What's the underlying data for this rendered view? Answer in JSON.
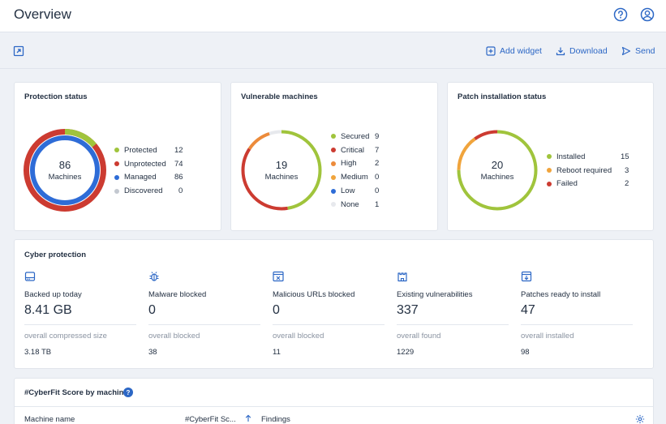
{
  "header": {
    "title": "Overview",
    "help_icon": "help-circle-icon",
    "account_icon": "user-circle-icon"
  },
  "toolbar": {
    "left_icon": "fullscreen-icon",
    "add_widget": "Add widget",
    "download": "Download",
    "send": "Send"
  },
  "colors": {
    "accent": "#2c67c5",
    "green": "#a0c43c",
    "red": "#cc3b31",
    "orange": "#ec8b3b",
    "amber": "#f0a43c",
    "blue": "#2e6cd7",
    "grey": "#c3c8d0",
    "light_grey": "#e7e9ed"
  },
  "protection_status": {
    "title": "Protection status",
    "center_value": "86",
    "center_label": "Machines",
    "legend": [
      {
        "label": "Protected",
        "value": "12",
        "color": "#a0c43c"
      },
      {
        "label": "Unprotected",
        "value": "74",
        "color": "#cc3b31"
      },
      {
        "label": "Managed",
        "value": "86",
        "color": "#2e6cd7"
      },
      {
        "label": "Discovered",
        "value": "0",
        "color": "#c3c8d0"
      }
    ]
  },
  "vulnerable_machines": {
    "title": "Vulnerable machines",
    "center_value": "19",
    "center_label": "Machines",
    "legend": [
      {
        "label": "Secured",
        "value": "9",
        "color": "#a0c43c"
      },
      {
        "label": "Critical",
        "value": "7",
        "color": "#cc3b31"
      },
      {
        "label": "High",
        "value": "2",
        "color": "#ec8b3b"
      },
      {
        "label": "Medium",
        "value": "0",
        "color": "#f0a43c"
      },
      {
        "label": "Low",
        "value": "0",
        "color": "#2e6cd7"
      },
      {
        "label": "None",
        "value": "1",
        "color": "#e7e9ed"
      }
    ]
  },
  "patch_installation": {
    "title": "Patch installation status",
    "center_value": "20",
    "center_label": "Machines",
    "legend": [
      {
        "label": "Installed",
        "value": "15",
        "color": "#a0c43c"
      },
      {
        "label": "Reboot required",
        "value": "3",
        "color": "#f0a43c"
      },
      {
        "label": "Failed",
        "value": "2",
        "color": "#cc3b31"
      }
    ]
  },
  "cyber_protection": {
    "title": "Cyber protection",
    "stats": [
      {
        "icon": "hard-drive-icon",
        "label": "Backed up today",
        "value": "8.41 GB",
        "sub_label": "overall compressed size",
        "sub_value": "3.18 TB"
      },
      {
        "icon": "bug-icon",
        "label": "Malware blocked",
        "value": "0",
        "sub_label": "overall blocked",
        "sub_value": "38"
      },
      {
        "icon": "browser-url-icon",
        "label": "Malicious URLs blocked",
        "value": "0",
        "sub_label": "overall blocked",
        "sub_value": "11"
      },
      {
        "icon": "castle-icon",
        "label": "Existing vulnerabilities",
        "value": "337",
        "sub_label": "overall found",
        "sub_value": "1229"
      },
      {
        "icon": "patch-download-icon",
        "label": "Patches ready to install",
        "value": "47",
        "sub_label": "overall installed",
        "sub_value": "98"
      }
    ]
  },
  "cyberfit": {
    "title": "#CyberFit Score by machine",
    "help_badge": "?",
    "columns": {
      "machine_name": "Machine name",
      "score": "#CyberFit Sc...",
      "sort_icon": "sort-arrow-up-icon",
      "findings": "Findings",
      "settings_icon": "gear-icon"
    }
  }
}
